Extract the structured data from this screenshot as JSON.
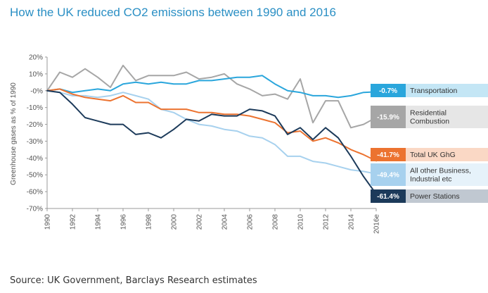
{
  "title": "How the UK reduced CO2 emissions between 1990 and 2016",
  "source": "Source: UK Government, Barclays Research estimates",
  "chart_data": {
    "type": "line",
    "ylabel": "Greenhouse gases as % of 1990",
    "ylim": [
      -70,
      20
    ],
    "yticks": [
      20,
      10,
      0,
      -10,
      -20,
      -30,
      -40,
      -50,
      -60,
      -70
    ],
    "ytick_labels": [
      "20%",
      "10%",
      "-0%",
      "-10%",
      "-20%",
      "-30%",
      "-40%",
      "-50%",
      "-60%",
      "-70%"
    ],
    "xlim": [
      1990,
      2016
    ],
    "xticks": [
      1990,
      1992,
      1994,
      1996,
      1998,
      2000,
      2002,
      2004,
      2006,
      2008,
      2010,
      2012,
      2014,
      2016
    ],
    "xtick_labels": [
      "1990",
      "1992",
      "1994",
      "1996",
      "1998",
      "2000",
      "2002",
      "2004",
      "2006",
      "2008",
      "2010",
      "2012",
      "2014",
      "2016e"
    ],
    "grid": false,
    "x": [
      1990,
      1991,
      1992,
      1993,
      1994,
      1995,
      1996,
      1997,
      1998,
      1999,
      2000,
      2001,
      2002,
      2003,
      2004,
      2005,
      2006,
      2007,
      2008,
      2009,
      2010,
      2011,
      2012,
      2013,
      2014,
      2015,
      2016
    ],
    "series": [
      {
        "name": "Residential Combustion",
        "color": "#a6a6a6",
        "end_label": "-15.9%",
        "values": [
          0,
          11,
          8,
          13,
          8,
          2,
          15,
          6,
          9,
          9,
          9,
          11,
          7,
          8,
          10,
          4,
          1,
          -3,
          -2,
          -5,
          7,
          -19,
          -6,
          -6,
          -22,
          -20,
          -15.9
        ]
      },
      {
        "name": "Transportation",
        "color": "#2aa6dc",
        "end_label": "-0.7%",
        "values": [
          0,
          1,
          -1,
          0,
          1,
          0,
          4,
          5,
          4,
          5,
          4,
          4,
          6,
          6,
          7,
          8,
          8,
          9,
          4,
          0,
          -1,
          -3,
          -3,
          -4,
          -3,
          -1,
          -0.7
        ]
      },
      {
        "name": "All other Business, Industrial etc",
        "color": "#a7d1ee",
        "end_label": "-49.4%",
        "values": [
          0,
          -1,
          -3,
          -3,
          -4,
          -3,
          -1,
          -3,
          -5,
          -11,
          -13,
          -17,
          -20,
          -21,
          -23,
          -24,
          -27,
          -28,
          -32,
          -39,
          -39,
          -42,
          -43,
          -45,
          -47,
          -48,
          -49.4
        ]
      },
      {
        "name": "Total UK GhG",
        "color": "#ec7330",
        "end_label": "-41.7%",
        "values": [
          0,
          1,
          -2,
          -4,
          -5,
          -6,
          -3,
          -7,
          -7,
          -11,
          -11,
          -11,
          -13,
          -13,
          -14,
          -14,
          -15,
          -17,
          -19,
          -25,
          -24,
          -30,
          -28,
          -31,
          -35,
          -38,
          -41.7
        ]
      },
      {
        "name": "Power Stations",
        "color": "#1c3a5a",
        "end_label": "-61.4%",
        "values": [
          0,
          -1,
          -8,
          -16,
          -18,
          -20,
          -20,
          -26,
          -25,
          -28,
          -23,
          -17,
          -18,
          -14,
          -15,
          -15,
          -11,
          -12,
          -15,
          -26,
          -22,
          -29,
          -22,
          -28,
          -39,
          -51,
          -61.4
        ]
      }
    ]
  }
}
